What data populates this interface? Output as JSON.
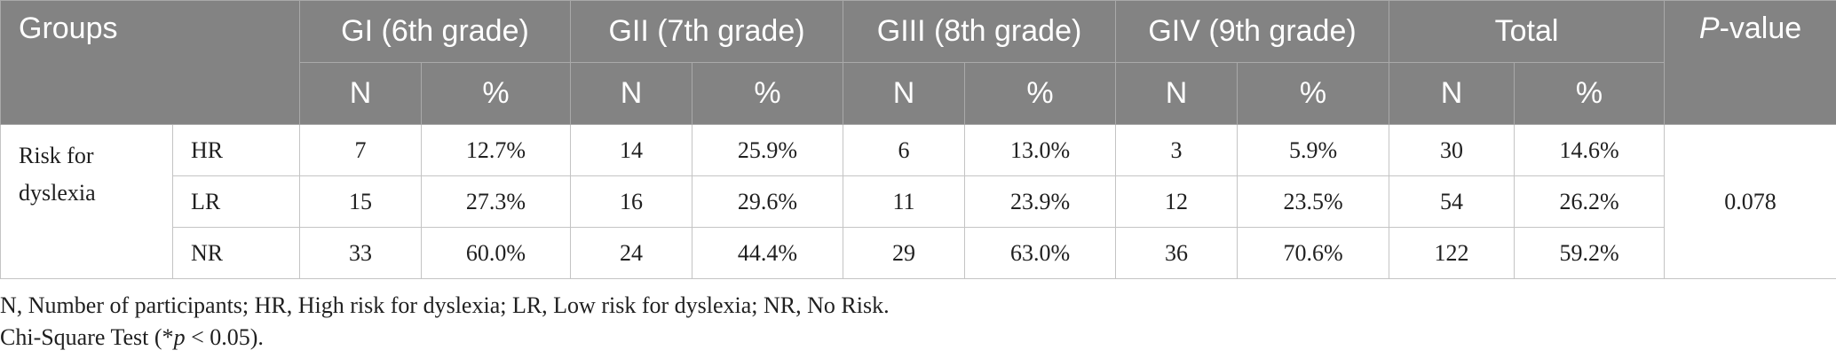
{
  "table": {
    "header": {
      "groups": "Groups",
      "columns": [
        "GI (6th grade)",
        "GII (7th grade)",
        "GIII (8th grade)",
        "GIV (9th grade)",
        "Total"
      ],
      "pvalue_italic": "P",
      "pvalue_rest": "-value",
      "sub_n": "N",
      "sub_pct": "%"
    },
    "row_group": {
      "line1": "Risk for",
      "line2": "dyslexia"
    },
    "rows": [
      {
        "label": "HR",
        "cells": [
          "7",
          "12.7%",
          "14",
          "25.9%",
          "6",
          "13.0%",
          "3",
          "5.9%",
          "30",
          "14.6%"
        ]
      },
      {
        "label": "LR",
        "cells": [
          "15",
          "27.3%",
          "16",
          "29.6%",
          "11",
          "23.9%",
          "12",
          "23.5%",
          "54",
          "26.2%"
        ]
      },
      {
        "label": "NR",
        "cells": [
          "33",
          "60.0%",
          "24",
          "44.4%",
          "29",
          "63.0%",
          "36",
          "70.6%",
          "122",
          "59.2%"
        ]
      }
    ],
    "pvalue": "0.078"
  },
  "footnotes": {
    "line1": "N, Number of participants; HR, High risk for dyslexia; LR, Low risk for dyslexia; NR, No Risk.",
    "line2_pre": "Chi-Square Test (*",
    "line2_italic": "p",
    "line2_post": " < 0.05)."
  }
}
